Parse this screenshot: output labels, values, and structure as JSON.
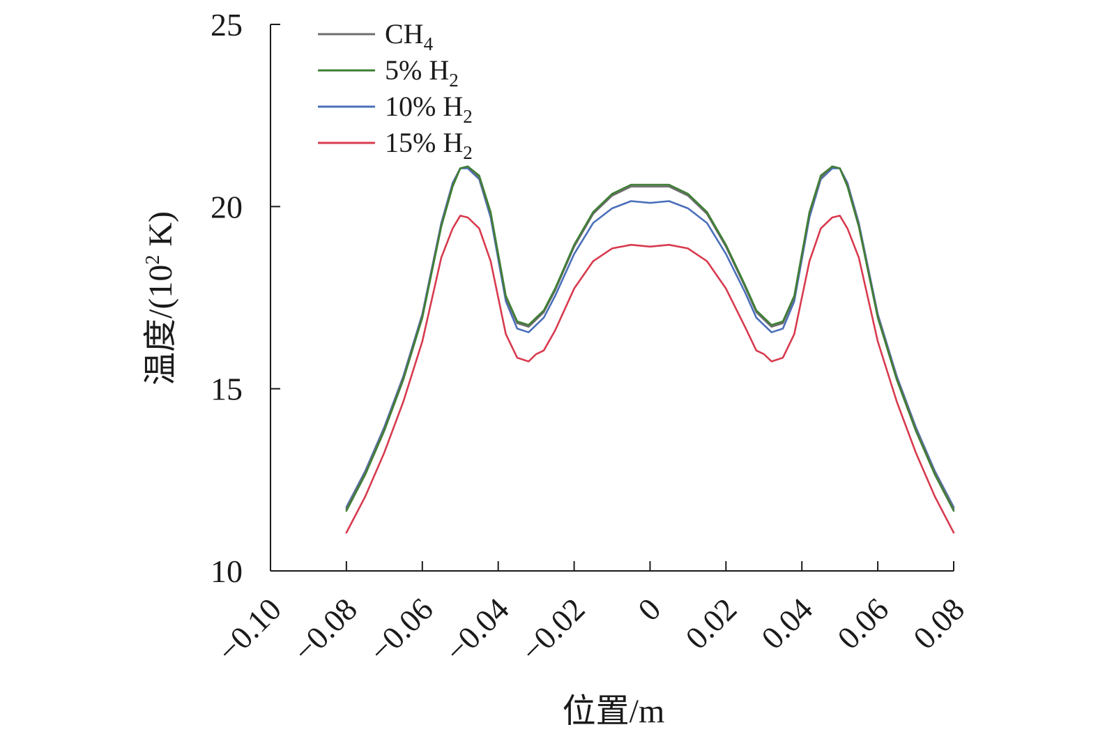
{
  "chart_data": {
    "type": "line",
    "title": "",
    "xlabel": "位置/m",
    "ylabel_prefix": "温度/(10",
    "ylabel_sup": "2",
    "ylabel_suffix": " K)",
    "xlim": [
      -0.1,
      0.08
    ],
    "ylim": [
      10,
      25
    ],
    "xticks": [
      -0.1,
      -0.08,
      -0.06,
      -0.04,
      -0.02,
      0,
      0.02,
      0.04,
      0.06,
      0.08
    ],
    "xtick_labels": [
      "−0.10",
      "−0.08",
      "−0.06",
      "−0.04",
      "−0.02",
      "0",
      "0.02",
      "0.04",
      "0.06",
      "0.08"
    ],
    "yticks": [
      10,
      15,
      20,
      25
    ],
    "ytick_labels": [
      "10",
      "15",
      "20",
      "25"
    ],
    "legend_position": "top-left",
    "x": [
      -0.08,
      -0.075,
      -0.07,
      -0.065,
      -0.06,
      -0.055,
      -0.052,
      -0.05,
      -0.048,
      -0.045,
      -0.042,
      -0.038,
      -0.035,
      -0.032,
      -0.03,
      -0.028,
      -0.025,
      -0.02,
      -0.015,
      -0.01,
      -0.005,
      0,
      0.005,
      0.01,
      0.015,
      0.02,
      0.025,
      0.028,
      0.03,
      0.032,
      0.035,
      0.038,
      0.042,
      0.045,
      0.048,
      0.05,
      0.052,
      0.055,
      0.06,
      0.065,
      0.07,
      0.075,
      0.08
    ],
    "series": [
      {
        "name": "CH4",
        "label_main": "CH",
        "label_sub": "4",
        "color": "#6d6d6d",
        "values": [
          11.7,
          12.7,
          13.9,
          15.3,
          17.0,
          19.5,
          20.6,
          21.05,
          21.1,
          20.8,
          19.8,
          17.5,
          16.8,
          16.7,
          16.9,
          17.1,
          17.7,
          18.9,
          19.8,
          20.3,
          20.55,
          20.55,
          20.55,
          20.3,
          19.8,
          18.9,
          17.8,
          17.1,
          16.9,
          16.7,
          16.8,
          17.5,
          19.8,
          20.8,
          21.1,
          21.05,
          20.6,
          19.5,
          17.0,
          15.3,
          13.9,
          12.7,
          11.7
        ]
      },
      {
        "name": "5% H2",
        "label_main": "5% H",
        "label_sub": "2",
        "color": "#3f7f35",
        "values": [
          11.65,
          12.65,
          13.85,
          15.25,
          16.95,
          19.45,
          20.55,
          21.05,
          21.1,
          20.85,
          19.85,
          17.55,
          16.85,
          16.75,
          16.95,
          17.15,
          17.75,
          18.95,
          19.85,
          20.35,
          20.6,
          20.6,
          20.6,
          20.35,
          19.85,
          18.95,
          17.85,
          17.15,
          16.95,
          16.75,
          16.85,
          17.55,
          19.85,
          20.85,
          21.1,
          21.05,
          20.55,
          19.45,
          16.95,
          15.25,
          13.85,
          12.65,
          11.65
        ]
      },
      {
        "name": "10% H2",
        "label_main": "10% H",
        "label_sub": "2",
        "color": "#4a6fba",
        "values": [
          11.75,
          12.75,
          13.95,
          15.35,
          17.05,
          19.55,
          20.65,
          21.05,
          21.05,
          20.75,
          19.7,
          17.4,
          16.65,
          16.55,
          16.75,
          16.95,
          17.55,
          18.7,
          19.55,
          19.95,
          20.15,
          20.1,
          20.15,
          19.95,
          19.55,
          18.7,
          17.65,
          16.95,
          16.75,
          16.55,
          16.65,
          17.4,
          19.7,
          20.75,
          21.05,
          21.05,
          20.65,
          19.55,
          17.05,
          15.35,
          13.95,
          12.75,
          11.75
        ]
      },
      {
        "name": "15% H2",
        "label_main": "15% H",
        "label_sub": "2",
        "color": "#d83a4e",
        "values": [
          11.05,
          12.05,
          13.25,
          14.65,
          16.3,
          18.6,
          19.4,
          19.75,
          19.7,
          19.4,
          18.5,
          16.5,
          15.85,
          15.75,
          15.95,
          16.05,
          16.6,
          17.75,
          18.5,
          18.85,
          18.95,
          18.9,
          18.95,
          18.85,
          18.5,
          17.75,
          16.7,
          16.05,
          15.95,
          15.75,
          15.85,
          16.5,
          18.5,
          19.4,
          19.7,
          19.75,
          19.4,
          18.6,
          16.3,
          14.65,
          13.25,
          12.05,
          11.05
        ]
      }
    ]
  }
}
